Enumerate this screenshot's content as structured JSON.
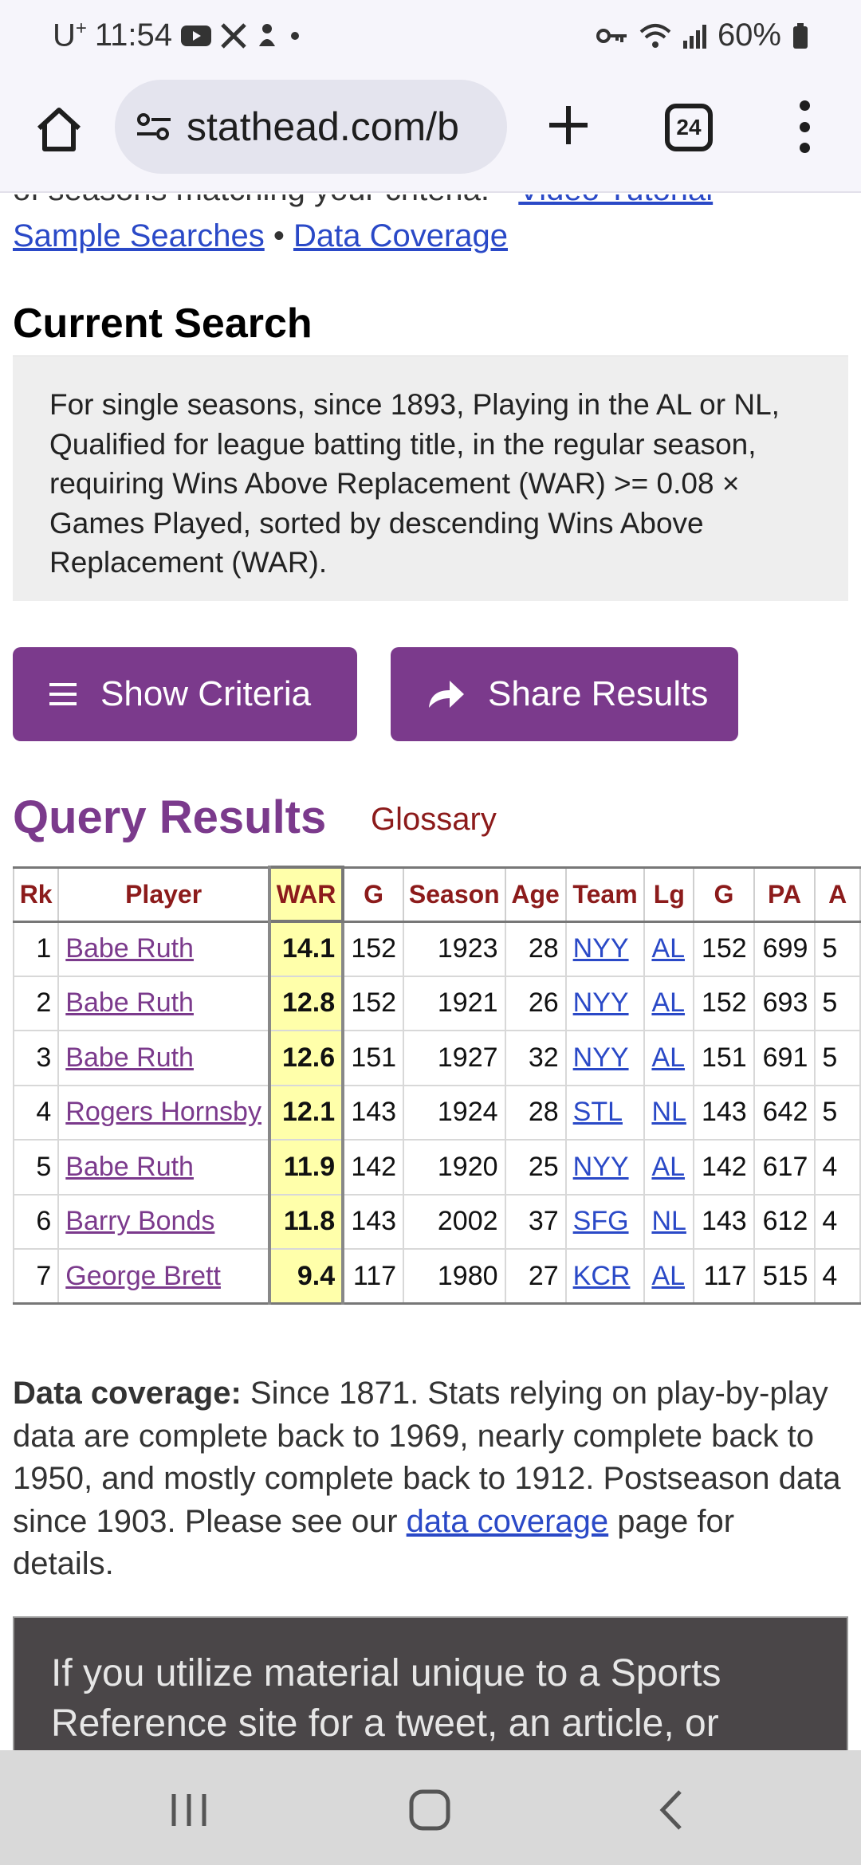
{
  "status_bar": {
    "carrier": "U",
    "carrier_sup": "+",
    "time": "11:54",
    "battery": "60%",
    "icons": [
      "youtube-icon",
      "x-icon",
      "notification-icon",
      "dot-icon",
      "key-icon",
      "wifi-icon",
      "signal-icon",
      "battery-icon"
    ]
  },
  "browser": {
    "url": "stathead.com/b",
    "tab_count": "24",
    "icons": [
      "home-icon",
      "site-settings-icon",
      "new-tab-icon",
      "tabs-icon",
      "more-menu-icon"
    ]
  },
  "intro": {
    "cut_text": "of seasons matching your criteria. • ",
    "video_tutorial": "Video Tutorial",
    "cut_after": " •",
    "sample_searches": "Sample Searches",
    "separator": " • ",
    "data_coverage": "Data Coverage"
  },
  "current_search": {
    "heading": "Current Search",
    "description": "For single seasons, since 1893, Playing in the AL or NL, Qualified for league batting title, in the regular season, requiring Wins Above Replacement (WAR) >= 0.08 × Games Played, sorted by descending Wins Above Replacement (WAR)."
  },
  "buttons": {
    "show_criteria": "Show Criteria",
    "share_results": "Share Results"
  },
  "results": {
    "title": "Query Results",
    "glossary": "Glossary",
    "columns": [
      "Rk",
      "Player",
      "WAR",
      "G",
      "Season",
      "Age",
      "Team",
      "Lg",
      "G",
      "PA",
      "A"
    ],
    "rows": [
      {
        "rk": "1",
        "player": "Babe Ruth",
        "war": "14.1",
        "g": "152",
        "season": "1923",
        "age": "28",
        "team": "NYY",
        "lg": "AL",
        "g2": "152",
        "pa": "699",
        "ab": "5"
      },
      {
        "rk": "2",
        "player": "Babe Ruth",
        "war": "12.8",
        "g": "152",
        "season": "1921",
        "age": "26",
        "team": "NYY",
        "lg": "AL",
        "g2": "152",
        "pa": "693",
        "ab": "5"
      },
      {
        "rk": "3",
        "player": "Babe Ruth",
        "war": "12.6",
        "g": "151",
        "season": "1927",
        "age": "32",
        "team": "NYY",
        "lg": "AL",
        "g2": "151",
        "pa": "691",
        "ab": "5"
      },
      {
        "rk": "4",
        "player": "Rogers Hornsby",
        "war": "12.1",
        "g": "143",
        "season": "1924",
        "age": "28",
        "team": "STL",
        "lg": "NL",
        "g2": "143",
        "pa": "642",
        "ab": "5"
      },
      {
        "rk": "5",
        "player": "Babe Ruth",
        "war": "11.9",
        "g": "142",
        "season": "1920",
        "age": "25",
        "team": "NYY",
        "lg": "AL",
        "g2": "142",
        "pa": "617",
        "ab": "4"
      },
      {
        "rk": "6",
        "player": "Barry Bonds",
        "war": "11.8",
        "g": "143",
        "season": "2002",
        "age": "37",
        "team": "SFG",
        "lg": "NL",
        "g2": "143",
        "pa": "612",
        "ab": "4"
      },
      {
        "rk": "7",
        "player": "George Brett",
        "war": "9.4",
        "g": "117",
        "season": "1980",
        "age": "27",
        "team": "KCR",
        "lg": "AL",
        "g2": "117",
        "pa": "515",
        "ab": "4"
      }
    ]
  },
  "coverage": {
    "label": "Data coverage:",
    "text": " Since 1871. Stats relying on play-by-play data are complete back to 1969, nearly complete back to 1950, and mostly complete back to 1912. Postseason data since 1903. Please see our ",
    "link": "data coverage",
    "tail": " page for details."
  },
  "notice": {
    "text": "If you utilize material unique to a Sports Reference site for a tweet, an article, or"
  },
  "nav": {
    "icons": [
      "recents-icon",
      "home-nav-icon",
      "back-icon"
    ]
  },
  "colors": {
    "accent_purple": "#7b3a8c",
    "header_red": "#8c1b1b",
    "link_blue": "#2a49c7",
    "war_highlight": "#ffffaa"
  }
}
